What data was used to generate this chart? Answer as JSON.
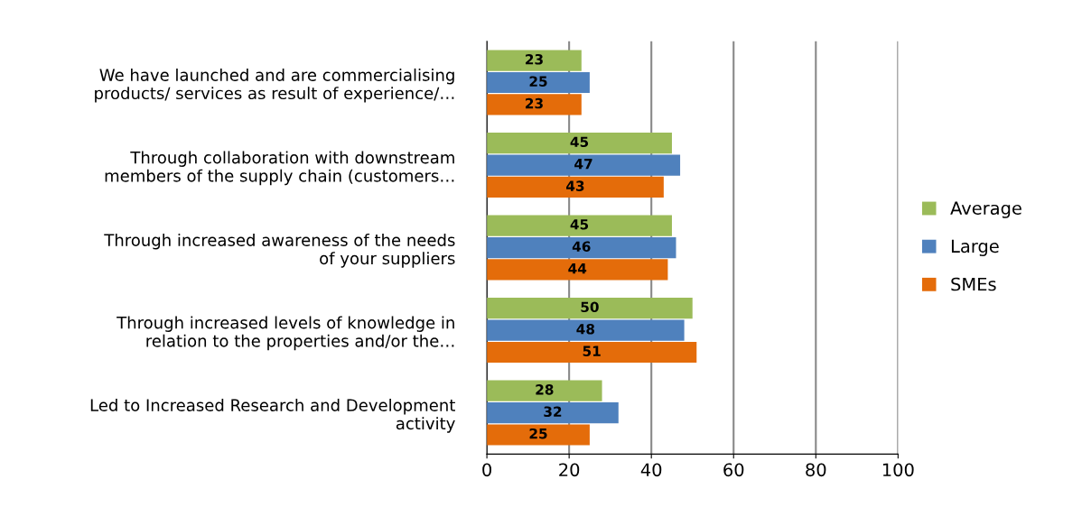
{
  "chart_data": {
    "type": "bar",
    "orientation": "horizontal",
    "categories": [
      "We have launched and are commercialising\nproducts/ services as result of experience/…",
      "Through collaboration with downstream\nmembers of the supply chain (customers…",
      "Through increased awareness of the needs\nof your suppliers",
      "Through increased levels of knowledge in\nrelation to the properties and/or the…",
      "Led to Increased Research and Development\nactivity"
    ],
    "series": [
      {
        "name": "Average",
        "color": "#9bbb59",
        "values": [
          23,
          45,
          45,
          50,
          28
        ]
      },
      {
        "name": "Large",
        "color": "#4f81bd",
        "values": [
          25,
          47,
          46,
          48,
          32
        ]
      },
      {
        "name": "SMEs",
        "color": "#e46c0a",
        "values": [
          23,
          43,
          44,
          51,
          25
        ]
      }
    ],
    "xlim": [
      0,
      100
    ],
    "xticks": [
      0,
      20,
      40,
      60,
      80,
      100
    ],
    "grid": "x",
    "legend": "right",
    "data_labels": true
  }
}
